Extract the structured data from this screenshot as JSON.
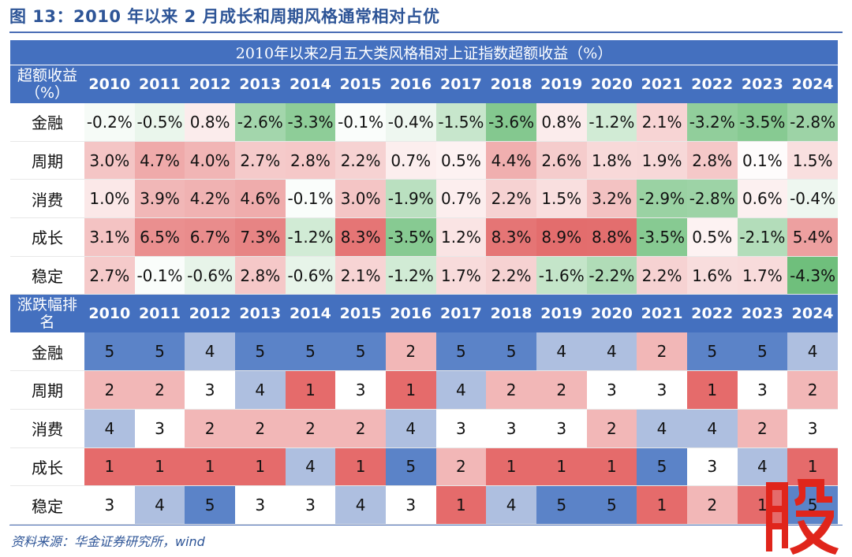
{
  "figure_title": "图 13：2010 年以来 2 月成长和周期风格通常相对占优",
  "table_title": "2010年以来2月五大类风格相对上证指数超额收益（%）",
  "excess_header_label": "超额收益（%）",
  "rank_header_label": "涨跌幅排名",
  "years": [
    "2010",
    "2011",
    "2012",
    "2013",
    "2014",
    "2015",
    "2016",
    "2017",
    "2018",
    "2019",
    "2020",
    "2021",
    "2022",
    "2023",
    "2024"
  ],
  "excess_rows": [
    {
      "name": "金融",
      "highlight": false,
      "values": [
        "-0.2%",
        "-0.5%",
        "0.8%",
        "-2.6%",
        "-3.3%",
        "-0.1%",
        "-0.4%",
        "-1.5%",
        "-3.6%",
        "0.8%",
        "-1.2%",
        "2.1%",
        "-3.2%",
        "-3.5%",
        "-2.8%"
      ]
    },
    {
      "name": "周期",
      "highlight": true,
      "values": [
        "3.0%",
        "4.7%",
        "4.0%",
        "2.7%",
        "2.8%",
        "2.2%",
        "0.7%",
        "0.5%",
        "4.4%",
        "2.6%",
        "1.8%",
        "1.9%",
        "2.8%",
        "0.1%",
        "1.5%"
      ]
    },
    {
      "name": "消费",
      "highlight": false,
      "values": [
        "1.0%",
        "3.9%",
        "4.2%",
        "4.6%",
        "-0.1%",
        "3.0%",
        "-1.9%",
        "0.7%",
        "2.2%",
        "1.5%",
        "3.2%",
        "-2.9%",
        "-2.8%",
        "0.6%",
        "-0.4%"
      ]
    },
    {
      "name": "成长",
      "highlight": true,
      "values": [
        "3.1%",
        "6.5%",
        "6.7%",
        "7.3%",
        "-1.2%",
        "8.3%",
        "-3.5%",
        "1.2%",
        "8.3%",
        "8.9%",
        "8.8%",
        "-3.5%",
        "0.5%",
        "-2.1%",
        "5.4%"
      ]
    },
    {
      "name": "稳定",
      "highlight": false,
      "values": [
        "2.7%",
        "-0.1%",
        "-0.6%",
        "2.8%",
        "-0.6%",
        "2.1%",
        "-1.2%",
        "1.7%",
        "2.2%",
        "-1.6%",
        "-2.2%",
        "2.2%",
        "1.6%",
        "1.7%",
        "-4.3%"
      ]
    }
  ],
  "rank_rows": [
    {
      "name": "金融",
      "highlight": false,
      "values": [
        "5",
        "5",
        "4",
        "5",
        "5",
        "5",
        "2",
        "5",
        "5",
        "4",
        "4",
        "2",
        "5",
        "5",
        "4"
      ]
    },
    {
      "name": "周期",
      "highlight": true,
      "values": [
        "2",
        "2",
        "3",
        "4",
        "1",
        "3",
        "1",
        "4",
        "2",
        "2",
        "3",
        "3",
        "1",
        "3",
        "2"
      ]
    },
    {
      "name": "消费",
      "highlight": false,
      "values": [
        "4",
        "3",
        "2",
        "2",
        "2",
        "2",
        "4",
        "3",
        "3",
        "3",
        "2",
        "4",
        "4",
        "2",
        "3"
      ]
    },
    {
      "name": "成长",
      "highlight": true,
      "values": [
        "1",
        "1",
        "1",
        "1",
        "4",
        "1",
        "5",
        "2",
        "1",
        "1",
        "1",
        "5",
        "3",
        "4",
        "1"
      ]
    },
    {
      "name": "稳定",
      "highlight": false,
      "values": [
        "3",
        "4",
        "5",
        "3",
        "3",
        "4",
        "3",
        "1",
        "4",
        "5",
        "5",
        "1",
        "2",
        "1",
        "5"
      ]
    }
  ],
  "source_note": "资料来源：华金证券研究所，wind",
  "colors": {
    "header_blue": "#4470bf",
    "label_red": "#d93a2c",
    "pos_strong": "#e36d6d",
    "neg_strong": "#6fbf7c",
    "rank_1": "#e56b6b",
    "rank_2": "#f2b7b7",
    "rank_3": "#ffffff",
    "rank_4": "#aebfe0",
    "rank_5": "#5b83c8"
  }
}
